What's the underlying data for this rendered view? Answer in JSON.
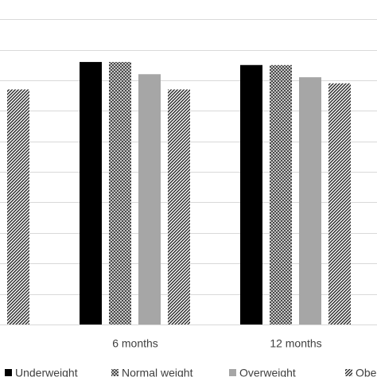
{
  "chart_data": {
    "type": "bar",
    "categories": [
      null,
      "6 months",
      "12 months"
    ],
    "series": [
      {
        "name": "Underweight",
        "color": "#000000",
        "pattern": "solid",
        "values": [
          null,
          8.6,
          8.5
        ]
      },
      {
        "name": "Normal weight",
        "color": "#404040",
        "pattern": "crosshatch",
        "values": [
          null,
          8.6,
          8.5
        ]
      },
      {
        "name": "Overweight",
        "color": "#a6a6a6",
        "pattern": "solid",
        "values": [
          null,
          8.2,
          8.1
        ]
      },
      {
        "name": "Obese",
        "color": "#262626",
        "pattern": "diagonal",
        "values": [
          7.7,
          7.7,
          7.9
        ]
      }
    ],
    "ylim": [
      0,
      10.5
    ],
    "yticks": [
      0,
      1,
      2,
      3,
      4,
      5,
      6,
      7,
      8,
      9,
      10
    ],
    "grid": true,
    "legend": "bottom"
  }
}
